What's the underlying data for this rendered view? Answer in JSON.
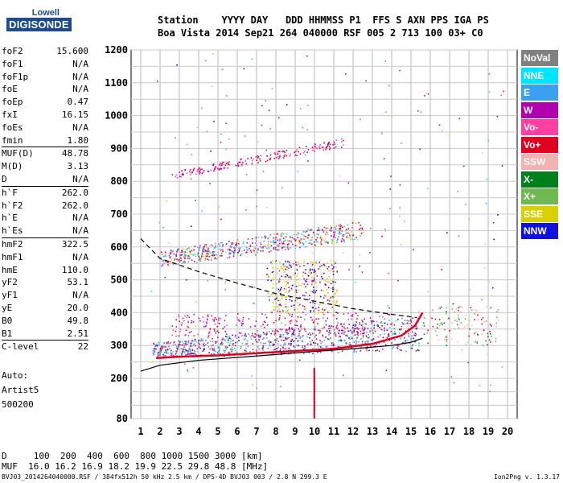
{
  "logo": {
    "line1": "Lowell",
    "line2": "DIGISONDE"
  },
  "header": {
    "line1": "Station    YYYY DAY   DDD HHMMSS P1  FFS S AXN PPS IGA PS",
    "line2": "Boa Vista 2014 Sep21 264 040000 RSF 005 2 713 100 03+ C0"
  },
  "params": [
    [
      {
        "label": "foF2",
        "value": "15.600"
      },
      {
        "label": "foF1",
        "value": "N/A"
      },
      {
        "label": "foF1p",
        "value": "N/A"
      },
      {
        "label": "foE",
        "value": "N/A"
      },
      {
        "label": "foEp",
        "value": "0.47"
      },
      {
        "label": "fxI",
        "value": "16.15"
      },
      {
        "label": "foEs",
        "value": "N/A"
      },
      {
        "label": "fmin",
        "value": "1.80"
      }
    ],
    [
      {
        "label": "MUF(D)",
        "value": "48.78"
      },
      {
        "label": "M(D)",
        "value": "3.13"
      },
      {
        "label": "D",
        "value": "N/A"
      }
    ],
    [
      {
        "label": "h`F",
        "value": "262.0"
      },
      {
        "label": "h`F2",
        "value": "262.0"
      },
      {
        "label": "h`E",
        "value": "N/A"
      },
      {
        "label": "h`Es",
        "value": "N/A"
      }
    ],
    [
      {
        "label": "hmF2",
        "value": "322.5"
      },
      {
        "label": "hmF1",
        "value": "N/A"
      },
      {
        "label": "hmE",
        "value": "110.0"
      },
      {
        "label": "yF2",
        "value": "53.1"
      },
      {
        "label": "yF1",
        "value": "N/A"
      },
      {
        "label": "yE",
        "value": "20.0"
      },
      {
        "label": "B0",
        "value": "49.8"
      },
      {
        "label": "B1",
        "value": "2.51"
      }
    ],
    [
      {
        "label": "C-level",
        "value": "22"
      }
    ]
  ],
  "auto": {
    "line1": "Auto:",
    "line2": "Artist5",
    "line3": "500200"
  },
  "legend": [
    {
      "label": "NoVal",
      "bg": "#808080",
      "fg": "#ffffff"
    },
    {
      "label": "NNE",
      "bg": "#00e5ff",
      "fg": "#ffffff"
    },
    {
      "label": "E",
      "bg": "#3ba0f0",
      "fg": "#ffffff"
    },
    {
      "label": "W",
      "bg": "#b000b0",
      "fg": "#ffffff"
    },
    {
      "label": "Vo-",
      "bg": "#ff40a0",
      "fg": "#ffffff"
    },
    {
      "label": "Vo+",
      "bg": "#e00020",
      "fg": "#ffffff"
    },
    {
      "label": "SSW",
      "bg": "#f5b0b0",
      "fg": "#ffffff"
    },
    {
      "label": "X-",
      "bg": "#00801a",
      "fg": "#ffffff"
    },
    {
      "label": "X+",
      "bg": "#70b850",
      "fg": "#ffffff"
    },
    {
      "label": "SSE",
      "bg": "#d8d000",
      "fg": "#ffffff"
    },
    {
      "label": "NNW",
      "bg": "#1010e0",
      "fg": "#ffffff"
    }
  ],
  "bottom": {
    "d_line": "D     100  200  400  600  800 1000 1500 3000 [km]",
    "muf_line": "MUF  16.0 16.2 16.9 18.2 19.9 22.5 29.8 48.8 [MHz]"
  },
  "footer": {
    "left": "BVJ03_2014264040000.RSF / 384fx512h 50 kHz 2.5 km / DPS-4D BVJ03 003 / 2.8 N 299.3 E",
    "right": "Ion2Png v. 1.3.17"
  },
  "chart_data": {
    "type": "scatter",
    "x_ticks": [
      "1",
      "2",
      "3",
      "4",
      "5",
      "6",
      "7",
      "8",
      "9",
      "10",
      "11",
      "12",
      "13",
      "14",
      "15",
      "16",
      "17",
      "18",
      "19",
      "20"
    ],
    "y_ticks": [
      "80",
      "200",
      "300",
      "400",
      "500",
      "600",
      "700",
      "800",
      "900",
      "1000",
      "1100",
      "1200"
    ],
    "xlim": [
      1,
      20
    ],
    "ylim": [
      80,
      1200
    ],
    "grid": true,
    "traces": [
      {
        "name": "F2 O-trace",
        "color": "#e00020",
        "x": [
          1.8,
          3,
          5,
          8,
          11,
          13,
          14.5,
          15.2,
          15.6
        ],
        "y": [
          262,
          266,
          270,
          280,
          290,
          305,
          330,
          360,
          400
        ]
      },
      {
        "name": "profile solid",
        "color": "#000000",
        "x": [
          1,
          2,
          4,
          7,
          10,
          12,
          14,
          15,
          15.6
        ],
        "y": [
          222,
          240,
          255,
          268,
          282,
          290,
          300,
          310,
          322
        ]
      },
      {
        "name": "profile dashed",
        "color": "#000000",
        "dash": true,
        "x": [
          1,
          2,
          4,
          6,
          8,
          10,
          12,
          14,
          15.3
        ],
        "y": [
          625,
          565,
          525,
          490,
          458,
          435,
          412,
          395,
          385
        ]
      }
    ],
    "echo_bands": [
      {
        "x0": 1.6,
        "x1": 15.6,
        "y0": 262,
        "y1": 400,
        "color": "#e00020",
        "kind": "trace"
      },
      {
        "x0": 2,
        "x1": 12.5,
        "y0": 530,
        "y1": 660,
        "color": "#b000b0",
        "kind": "multihop"
      },
      {
        "x0": 2.6,
        "x1": 11.5,
        "y0": 800,
        "y1": 920,
        "color": "#e00020",
        "kind": "thirdhop"
      },
      {
        "x0": 7.5,
        "x1": 11.5,
        "y0": 400,
        "y1": 560,
        "color": "#d8d000",
        "kind": "spread"
      }
    ]
  }
}
